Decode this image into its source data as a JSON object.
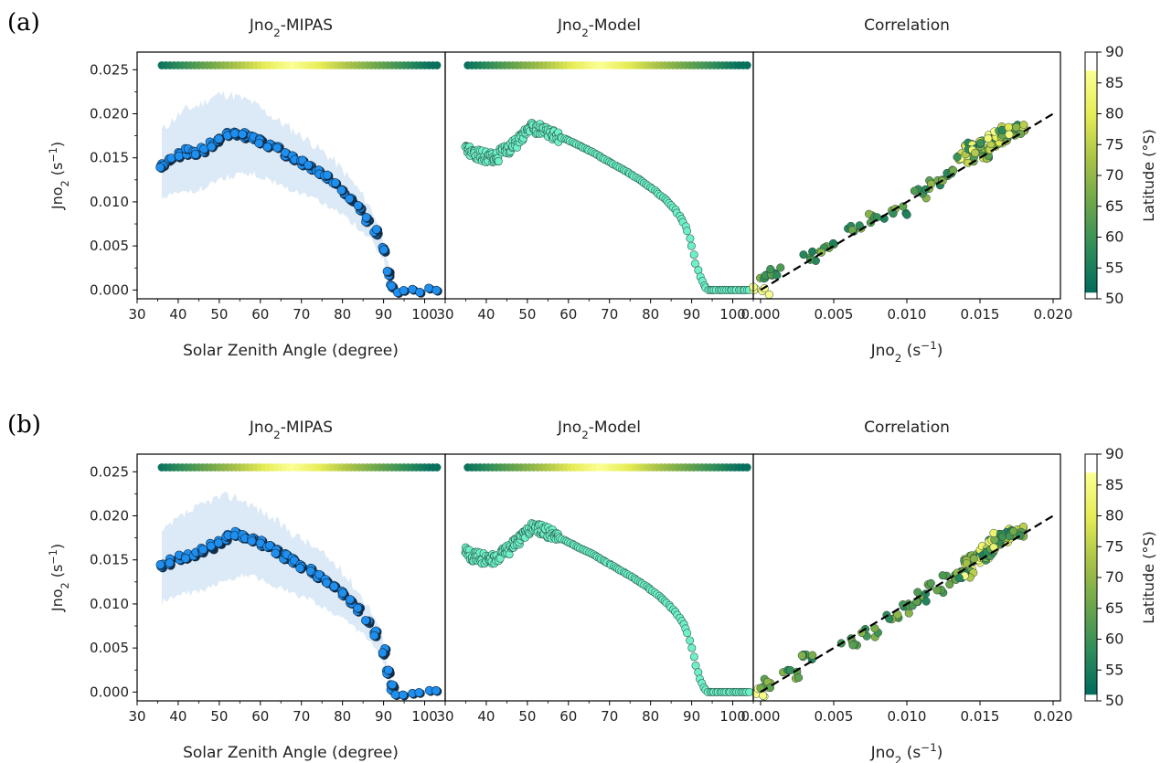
{
  "figure": {
    "rows": [
      {
        "letter": "(a)",
        "seed": 11
      },
      {
        "letter": "(b)",
        "seed": 37
      }
    ],
    "titles": {
      "mipas": [
        "Jno",
        "2",
        "-MIPAS"
      ],
      "model": [
        "Jno",
        "2",
        "-Model"
      ],
      "corr": [
        "Correlation"
      ]
    },
    "ylabel": [
      "Jno",
      "2",
      " (s",
      "−1",
      ")"
    ],
    "xlabel_sza": "Solar Zenith Angle (degree)",
    "xlabel_corr": [
      "Jno",
      "2",
      " (s",
      "−1",
      ")"
    ],
    "colorbar_label": "Latitude (°S)",
    "colors": {
      "mipas_points": "#1f8fef",
      "mipas_edge": "#0d2a44",
      "mipas_band": "#dce9f6",
      "model_points": "#6ff0c8",
      "model_edge": "#2a5a4c",
      "line": "#000000",
      "cmap": [
        "#006b5e",
        "#2f8d5a",
        "#6ba64b",
        "#a9c248",
        "#e6ec55",
        "#fbff94"
      ]
    }
  },
  "chart_data": [
    {
      "panel": "a-left",
      "type": "scatter",
      "title": "Jno2-MIPAS",
      "xlabel": "Solar Zenith Angle (degree)",
      "ylabel": "Jno2 (s-1)",
      "xlim": [
        30,
        105
      ],
      "ylim": [
        -0.001,
        0.027
      ],
      "xticks": [
        "30",
        "40",
        "50",
        "60",
        "70",
        "80",
        "90",
        "100"
      ],
      "yticks": [
        "0.000",
        "0.005",
        "0.010",
        "0.015",
        "0.020",
        "0.025"
      ],
      "series": [
        {
          "x": [
            36,
            38,
            40,
            42,
            44,
            46,
            48,
            50,
            52,
            54,
            56,
            58,
            60,
            62,
            64,
            66,
            68,
            70,
            72,
            74,
            76,
            78,
            80,
            82,
            84,
            86,
            88,
            90,
            91,
            92,
            93,
            95,
            97,
            99,
            101,
            103
          ],
          "y": [
            0.0142,
            0.0149,
            0.0153,
            0.0157,
            0.0156,
            0.016,
            0.0166,
            0.0172,
            0.0176,
            0.0177,
            0.0176,
            0.0175,
            0.017,
            0.0165,
            0.016,
            0.0155,
            0.015,
            0.0145,
            0.014,
            0.0133,
            0.0127,
            0.012,
            0.0112,
            0.0103,
            0.0093,
            0.0081,
            0.0066,
            0.0045,
            0.002,
            0.0006,
            0.0,
            0.0,
            0.0,
            0.0,
            0.0,
            0.0
          ],
          "band_upper": [
            0.0181,
            0.019,
            0.0198,
            0.0205,
            0.0208,
            0.0212,
            0.0218,
            0.0222,
            0.0222,
            0.022,
            0.0216,
            0.0213,
            0.0206,
            0.02,
            0.0193,
            0.0187,
            0.0181,
            0.0175,
            0.0169,
            0.0161,
            0.0154,
            0.0146,
            0.0136,
            0.0125,
            0.0113,
            0.01,
            0.0083,
            0.0058,
            0.0028,
            0.001
          ],
          "band_lower": [
            0.0102,
            0.0107,
            0.0111,
            0.0113,
            0.0113,
            0.0115,
            0.012,
            0.0124,
            0.0128,
            0.013,
            0.0131,
            0.0132,
            0.0129,
            0.0125,
            0.0121,
            0.0117,
            0.0113,
            0.011,
            0.0106,
            0.0101,
            0.0096,
            0.0091,
            0.0085,
            0.0078,
            0.007,
            0.0062,
            0.005,
            0.0034,
            0.0014,
            0.0003
          ]
        }
      ]
    },
    {
      "panel": "a-mid",
      "type": "scatter",
      "title": "Jno2-Model",
      "xlim": [
        30,
        105
      ],
      "ylim": [
        -0.001,
        0.027
      ],
      "xticks": [
        "30",
        "40",
        "50",
        "60",
        "70",
        "80",
        "90",
        "100"
      ],
      "series": [
        {
          "x": [
            35,
            37,
            39,
            41,
            43,
            45,
            47,
            49,
            51,
            53,
            55,
            57,
            60,
            63,
            66,
            69,
            72,
            75,
            78,
            81,
            84,
            86,
            88,
            89,
            90,
            91,
            92,
            93,
            94,
            96,
            98,
            100,
            102,
            104
          ],
          "y": [
            0.0158,
            0.0155,
            0.0152,
            0.015,
            0.0152,
            0.016,
            0.0165,
            0.0176,
            0.0185,
            0.0182,
            0.018,
            0.0175,
            0.017,
            0.0163,
            0.0156,
            0.0148,
            0.014,
            0.0132,
            0.0123,
            0.0113,
            0.0101,
            0.0091,
            0.0077,
            0.0067,
            0.005,
            0.003,
            0.0015,
            0.0005,
            0.0,
            0.0,
            0.0,
            0.0,
            0.0,
            0.0
          ]
        }
      ]
    },
    {
      "panel": "a-right",
      "type": "scatter",
      "title": "Correlation",
      "xlabel": "Jno2 (s-1)",
      "xlim": [
        -0.0005,
        0.0205
      ],
      "ylim": [
        -0.001,
        0.027
      ],
      "xticks": [
        "0.000",
        "0.005",
        "0.010",
        "0.015",
        "0.020"
      ],
      "fit_line": {
        "x": [
          0.0,
          0.02
        ],
        "y": [
          0.0,
          0.02
        ]
      },
      "series": [
        {
          "x": [
            0.0,
            0.0005,
            0.0008,
            0.0035,
            0.0045,
            0.0065,
            0.008,
            0.0095,
            0.011,
            0.012,
            0.013,
            0.014,
            0.0145,
            0.015,
            0.0155,
            0.016,
            0.0165,
            0.017,
            0.0175
          ],
          "y": [
            0.0,
            0.0015,
            0.002,
            0.0038,
            0.0048,
            0.007,
            0.0082,
            0.009,
            0.011,
            0.0122,
            0.0132,
            0.015,
            0.0162,
            0.0155,
            0.0165,
            0.017,
            0.0175,
            0.018,
            0.0182
          ]
        }
      ]
    },
    {
      "panel": "b-left",
      "type": "scatter",
      "title": "Jno2-MIPAS",
      "xlabel": "Solar Zenith Angle (degree)",
      "ylabel": "Jno2 (s-1)",
      "xlim": [
        30,
        105
      ],
      "ylim": [
        -0.001,
        0.027
      ],
      "xticks": [
        "30",
        "40",
        "50",
        "60",
        "70",
        "80",
        "90",
        "100"
      ],
      "yticks": [
        "0.000",
        "0.005",
        "0.010",
        "0.015",
        "0.020",
        "0.025"
      ],
      "series": [
        {
          "x": [
            36,
            38,
            40,
            42,
            44,
            46,
            48,
            50,
            52,
            54,
            56,
            58,
            60,
            62,
            64,
            66,
            68,
            70,
            72,
            74,
            76,
            78,
            80,
            82,
            84,
            86,
            88,
            90,
            91,
            92,
            93,
            95,
            97,
            99,
            101,
            103
          ],
          "y": [
            0.0144,
            0.0148,
            0.0152,
            0.0155,
            0.0157,
            0.0162,
            0.0166,
            0.0171,
            0.0176,
            0.018,
            0.0177,
            0.0173,
            0.0169,
            0.0164,
            0.0159,
            0.0154,
            0.0149,
            0.0143,
            0.0138,
            0.0132,
            0.0126,
            0.0119,
            0.0112,
            0.0103,
            0.0093,
            0.0081,
            0.0066,
            0.0046,
            0.0022,
            0.0006,
            0.0,
            0.0,
            0.0,
            0.0,
            0.0,
            0.0
          ],
          "band_upper": [
            0.018,
            0.0189,
            0.0196,
            0.0203,
            0.0207,
            0.0212,
            0.0218,
            0.0221,
            0.0222,
            0.0221,
            0.0217,
            0.0212,
            0.0206,
            0.02,
            0.0193,
            0.0187,
            0.018,
            0.0174,
            0.0168,
            0.0161,
            0.0154,
            0.0146,
            0.0136,
            0.0125,
            0.0113,
            0.01,
            0.0083,
            0.006,
            0.003,
            0.001
          ],
          "band_lower": [
            0.0102,
            0.0106,
            0.011,
            0.0112,
            0.0113,
            0.0116,
            0.012,
            0.0124,
            0.0128,
            0.0131,
            0.0132,
            0.0131,
            0.0128,
            0.0124,
            0.012,
            0.0116,
            0.0112,
            0.0108,
            0.0104,
            0.01,
            0.0095,
            0.009,
            0.0084,
            0.0077,
            0.0069,
            0.0061,
            0.0049,
            0.0033,
            0.0014,
            0.0003
          ]
        }
      ]
    },
    {
      "panel": "b-mid",
      "type": "scatter",
      "title": "Jno2-Model",
      "xlim": [
        30,
        105
      ],
      "ylim": [
        -0.001,
        0.027
      ],
      "xticks": [
        "30",
        "40",
        "50",
        "60",
        "70",
        "80",
        "90",
        "100"
      ],
      "series": [
        {
          "x": [
            35,
            37,
            39,
            41,
            43,
            45,
            47,
            49,
            51,
            53,
            55,
            57,
            60,
            63,
            66,
            69,
            72,
            75,
            78,
            81,
            84,
            86,
            88,
            89,
            90,
            91,
            92,
            93,
            94,
            96,
            98,
            100,
            102,
            104
          ],
          "y": [
            0.0158,
            0.0154,
            0.0152,
            0.0151,
            0.0154,
            0.016,
            0.0168,
            0.0178,
            0.0186,
            0.0185,
            0.0181,
            0.0177,
            0.017,
            0.0163,
            0.0156,
            0.0148,
            0.014,
            0.0132,
            0.0123,
            0.0113,
            0.0101,
            0.0091,
            0.0077,
            0.0067,
            0.005,
            0.003,
            0.0015,
            0.0005,
            0.0,
            0.0,
            0.0,
            0.0,
            0.0,
            0.0
          ]
        }
      ]
    },
    {
      "panel": "b-right",
      "type": "scatter",
      "title": "Correlation",
      "xlabel": "Jno2 (s-1)",
      "xlim": [
        -0.0005,
        0.0205
      ],
      "ylim": [
        -0.001,
        0.027
      ],
      "xticks": [
        "0.000",
        "0.005",
        "0.010",
        "0.015",
        "0.020"
      ],
      "fit_line": {
        "x": [
          0.0,
          0.02
        ],
        "y": [
          0.0,
          0.02
        ]
      },
      "series": [
        {
          "x": [
            0.0,
            0.0005,
            0.002,
            0.003,
            0.006,
            0.0075,
            0.009,
            0.01,
            0.011,
            0.012,
            0.013,
            0.014,
            0.0145,
            0.015,
            0.0155,
            0.016,
            0.0165,
            0.017,
            0.0175
          ],
          "y": [
            0.0,
            0.001,
            0.002,
            0.004,
            0.0058,
            0.0068,
            0.0085,
            0.0095,
            0.0108,
            0.0118,
            0.0128,
            0.0135,
            0.015,
            0.0155,
            0.016,
            0.0168,
            0.0175,
            0.018,
            0.0182
          ]
        }
      ]
    }
  ],
  "colorbar": {
    "label": "Latitude (°S)",
    "ticks": [
      "50",
      "55",
      "60",
      "65",
      "70",
      "75",
      "80",
      "85",
      "90"
    ],
    "range": [
      50,
      90
    ],
    "gradient_range": [
      51,
      87
    ]
  }
}
